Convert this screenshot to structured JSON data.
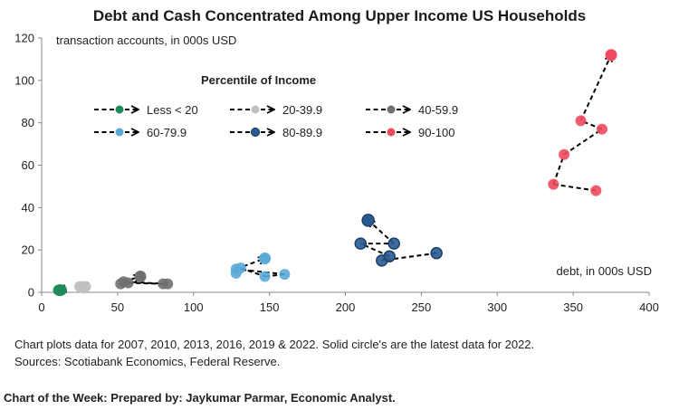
{
  "chart_data": {
    "type": "scatter",
    "title": "Debt and Cash Concentrated Among Upper Income US Households",
    "ylabel": "transaction accounts, in 000s USD",
    "xlabel": "debt, in 000s USD",
    "xlim": [
      0,
      400
    ],
    "ylim": [
      0,
      120
    ],
    "xticks": [
      0,
      50,
      100,
      150,
      200,
      250,
      300,
      350,
      400
    ],
    "yticks": [
      0,
      20,
      40,
      60,
      80,
      100,
      120
    ],
    "legend_title": "Percentile of Income",
    "legend_position": "upper-left",
    "years": [
      "2007",
      "2010",
      "2013",
      "2016",
      "2019",
      "2022"
    ],
    "series": [
      {
        "name": "Less < 20",
        "color": "#1f8a5b",
        "points": [
          [
            11,
            1
          ],
          [
            12,
            1
          ],
          [
            13,
            1
          ],
          [
            12,
            0.8
          ],
          [
            13,
            1.2
          ],
          [
            12,
            1
          ]
        ]
      },
      {
        "name": "20-39.9",
        "color": "#c0c0c0",
        "points": [
          [
            26,
            2.5
          ],
          [
            28,
            2
          ],
          [
            25,
            2.7
          ],
          [
            27,
            2.3
          ],
          [
            29,
            2.8
          ],
          [
            27,
            2.5
          ]
        ]
      },
      {
        "name": "40-59.9",
        "color": "#707070",
        "points": [
          [
            52,
            4
          ],
          [
            57,
            4.5
          ],
          [
            80,
            4
          ],
          [
            83,
            4
          ],
          [
            54,
            5
          ],
          [
            65,
            7.5
          ]
        ]
      },
      {
        "name": "60-79.9",
        "color": "#5aaad8",
        "points": [
          [
            128,
            9
          ],
          [
            131,
            11.5
          ],
          [
            147,
            7.5
          ],
          [
            160,
            8.5
          ],
          [
            128,
            11
          ],
          [
            147,
            16
          ]
        ]
      },
      {
        "name": "80-89.9",
        "color": "#2a5a91",
        "points": [
          [
            260,
            18.5
          ],
          [
            224,
            15
          ],
          [
            229,
            17
          ],
          [
            210,
            23
          ],
          [
            232,
            23
          ],
          [
            215,
            34
          ]
        ]
      },
      {
        "name": "90-100",
        "color": "#ef4a5e",
        "points": [
          [
            365,
            48
          ],
          [
            337,
            51
          ],
          [
            344,
            65
          ],
          [
            369,
            77
          ],
          [
            355,
            81
          ],
          [
            375,
            112
          ]
        ]
      }
    ]
  },
  "footnotes": {
    "line1": "Chart plots data for 2007, 2010, 2013, 2016, 2019 & 2022. Solid circle's are the latest data for 2022.",
    "line2": "Sources: Scotiabank Economics, Federal Reserve."
  },
  "credit": "Chart of the Week: Prepared by: Jaykumar Parmar, Economic Analyst."
}
